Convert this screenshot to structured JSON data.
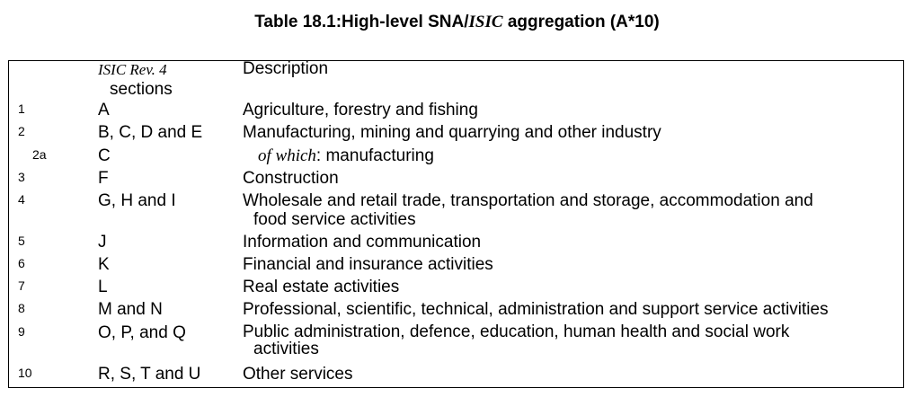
{
  "title": {
    "prefix": "Table 18.1:High-level SNA/",
    "italic": "ISIC",
    "suffix": " aggregation (A*10)"
  },
  "table": {
    "header": {
      "isic_line1": "ISIC Rev. 4",
      "isic_line2": "sections",
      "description": "Description"
    },
    "rows": [
      {
        "num": "1",
        "sections": "A",
        "description": "Agriculture, forestry and fishing",
        "description_cont": ""
      },
      {
        "num": "2",
        "sections": "B, C, D and E",
        "description": "Manufacturing, mining and quarrying and other industry",
        "description_cont": ""
      },
      {
        "num": "2a",
        "sections": "C",
        "description_italic": "of which",
        "description_rest": ": manufacturing"
      },
      {
        "num": "3",
        "sections": "F",
        "description": "Construction",
        "description_cont": ""
      },
      {
        "num": "4",
        "sections": "G, H and I",
        "description": "Wholesale and retail trade, transportation and storage, accommodation and",
        "description_cont": "food service activities"
      },
      {
        "num": "5",
        "sections": "J",
        "description": "Information and communication",
        "description_cont": ""
      },
      {
        "num": "6",
        "sections": "K",
        "description": "Financial and insurance activities",
        "description_cont": ""
      },
      {
        "num": "7",
        "sections": "L",
        "description": "Real estate activities",
        "description_cont": ""
      },
      {
        "num": "8",
        "sections": "M and N",
        "description": "Professional, scientific, technical, administration and support service activities",
        "description_cont": ""
      },
      {
        "num": "9",
        "sections": "O, P, and Q",
        "description": "Public administration, defence, education, human health and social work",
        "description_cont": "activities"
      },
      {
        "num": "10",
        "sections": "R, S, T and U",
        "description": "Other services",
        "description_cont": ""
      }
    ]
  }
}
